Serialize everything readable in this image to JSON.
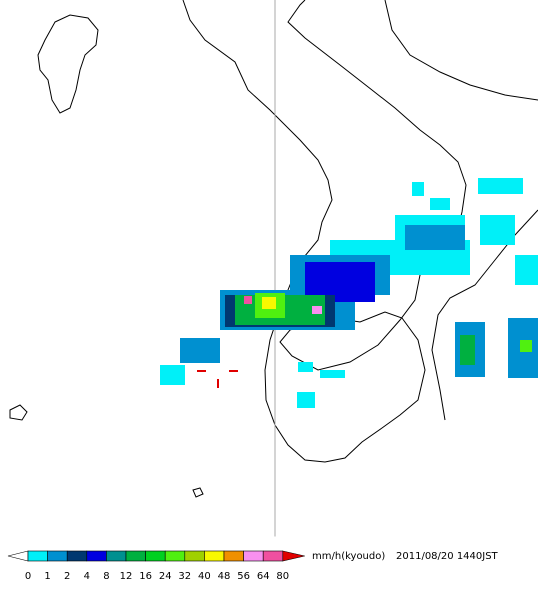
{
  "legend": {
    "ticks": [
      "0",
      "1",
      "2",
      "4",
      "8",
      "12",
      "16",
      "24",
      "32",
      "40",
      "48",
      "56",
      "64",
      "80"
    ],
    "colors": [
      "#00f0f8",
      "#0090d0",
      "#003870",
      "#0000e0",
      "#009090",
      "#00b040",
      "#00d020",
      "#50f010",
      "#a0d000",
      "#f8f800",
      "#f09000",
      "#f890f0",
      "#f050a0"
    ],
    "under": "#ffffff",
    "over": "#e00000",
    "unit": "mm/h(kyoudo)",
    "timestamp": "2011/08/20 1440JST"
  }
}
